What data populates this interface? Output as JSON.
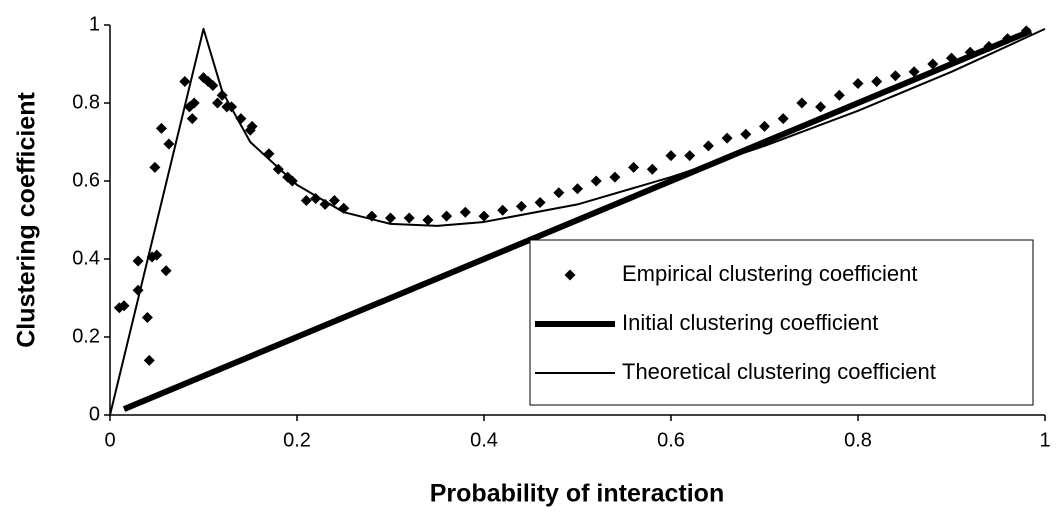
{
  "chart_data": {
    "type": "scatter",
    "xlabel": "Probability of interaction",
    "ylabel": "Clustering coefficient",
    "xlim": [
      0,
      1
    ],
    "ylim": [
      0,
      1
    ],
    "xticks": [
      0,
      0.2,
      0.4,
      0.6,
      0.8,
      1
    ],
    "yticks": [
      0,
      0.2,
      0.4,
      0.6,
      0.8,
      1
    ],
    "grid": false,
    "legend": "lower right",
    "series": [
      {
        "name": "Empirical clustering coefficient",
        "type": "scatter",
        "marker": "diamond",
        "color": "#000000",
        "x": [
          0.01,
          0.015,
          0.03,
          0.03,
          0.04,
          0.042,
          0.045,
          0.05,
          0.048,
          0.055,
          0.06,
          0.063,
          0.08,
          0.085,
          0.088,
          0.09,
          0.1,
          0.105,
          0.11,
          0.115,
          0.12,
          0.125,
          0.13,
          0.14,
          0.15,
          0.152,
          0.17,
          0.18,
          0.19,
          0.195,
          0.21,
          0.22,
          0.23,
          0.24,
          0.25,
          0.28,
          0.3,
          0.32,
          0.34,
          0.36,
          0.38,
          0.4,
          0.42,
          0.44,
          0.46,
          0.48,
          0.5,
          0.52,
          0.54,
          0.56,
          0.58,
          0.6,
          0.62,
          0.64,
          0.66,
          0.68,
          0.7,
          0.72,
          0.74,
          0.76,
          0.78,
          0.8,
          0.82,
          0.84,
          0.86,
          0.88,
          0.9,
          0.92,
          0.94,
          0.96,
          0.98
        ],
        "values": [
          0.275,
          0.28,
          0.32,
          0.395,
          0.25,
          0.14,
          0.405,
          0.41,
          0.635,
          0.735,
          0.37,
          0.695,
          0.855,
          0.79,
          0.76,
          0.8,
          0.865,
          0.855,
          0.845,
          0.8,
          0.82,
          0.79,
          0.79,
          0.76,
          0.73,
          0.74,
          0.67,
          0.63,
          0.61,
          0.6,
          0.55,
          0.555,
          0.54,
          0.55,
          0.53,
          0.51,
          0.505,
          0.505,
          0.5,
          0.51,
          0.52,
          0.51,
          0.525,
          0.535,
          0.545,
          0.57,
          0.58,
          0.6,
          0.61,
          0.635,
          0.63,
          0.665,
          0.665,
          0.69,
          0.71,
          0.72,
          0.74,
          0.76,
          0.8,
          0.79,
          0.82,
          0.85,
          0.855,
          0.87,
          0.88,
          0.9,
          0.915,
          0.93,
          0.945,
          0.965,
          0.985
        ]
      },
      {
        "name": "Initial clustering coefficient",
        "type": "line",
        "line": "thick",
        "color": "#000000",
        "x": [
          0.015,
          0.985
        ],
        "values": [
          0.015,
          0.985
        ]
      },
      {
        "name": "Theoretical clustering coefficient",
        "type": "line",
        "line": "thin",
        "color": "#000000",
        "x": [
          0,
          0.1,
          0.12,
          0.15,
          0.2,
          0.25,
          0.3,
          0.35,
          0.4,
          0.5,
          0.6,
          0.7,
          0.8,
          0.9,
          1
        ],
        "values": [
          0,
          0.99,
          0.83,
          0.7,
          0.59,
          0.52,
          0.49,
          0.485,
          0.495,
          0.54,
          0.61,
          0.69,
          0.78,
          0.88,
          0.99
        ]
      }
    ]
  }
}
